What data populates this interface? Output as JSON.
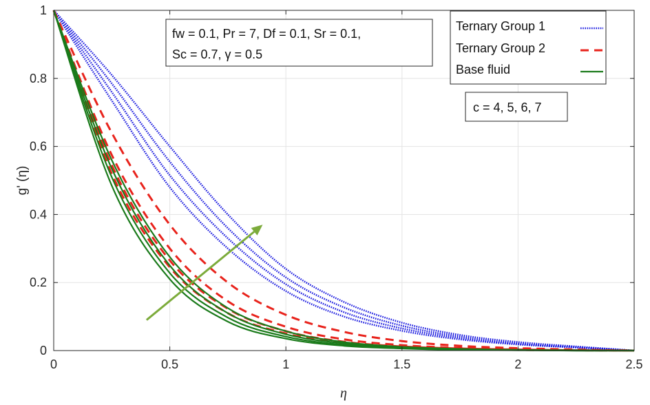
{
  "chart_data": {
    "type": "line",
    "title": "",
    "xlabel": "η",
    "ylabel": "g' (η)",
    "xlim": [
      0,
      2.5
    ],
    "ylim": [
      0,
      1
    ],
    "x_ticks": [
      "0",
      "0.5",
      "1",
      "1.5",
      "2",
      "2.5"
    ],
    "y_ticks": [
      "0",
      "0.2",
      "0.4",
      "0.6",
      "0.8",
      "1"
    ],
    "grid": true,
    "legend_position": "top-right",
    "parameter_box": {
      "line1": "fw = 0.1, Pr = 7, Df = 0.1, Sr = 0.1,",
      "line2": "Sc = 0.7, γ = 0.5"
    },
    "c_box": "c = 4, 5, 6, 7",
    "arrow": {
      "from": [
        0.4,
        0.09
      ],
      "to": [
        0.9,
        0.37
      ],
      "color": "#7cab3b"
    },
    "series": [
      {
        "name": "Ternary Group 1",
        "color": "#1f1fe0",
        "style": "dotted",
        "curves": [
          {
            "x": [
              0,
              0.25,
              0.5,
              0.75,
              1,
              1.25,
              1.5,
              1.75,
              2,
              2.25,
              2.5
            ],
            "y": [
              1,
              0.735,
              0.48,
              0.3,
              0.175,
              0.1,
              0.058,
              0.033,
              0.018,
              0.009,
              0
            ]
          },
          {
            "x": [
              0,
              0.25,
              0.5,
              0.75,
              1,
              1.25,
              1.5,
              1.75,
              2,
              2.25,
              2.5
            ],
            "y": [
              1,
              0.76,
              0.515,
              0.33,
              0.195,
              0.113,
              0.065,
              0.037,
              0.02,
              0.01,
              0
            ]
          },
          {
            "x": [
              0,
              0.25,
              0.5,
              0.75,
              1,
              1.25,
              1.5,
              1.75,
              2,
              2.25,
              2.5
            ],
            "y": [
              1,
              0.785,
              0.555,
              0.36,
              0.215,
              0.127,
              0.073,
              0.041,
              0.022,
              0.011,
              0
            ]
          },
          {
            "x": [
              0,
              0.25,
              0.5,
              0.75,
              1,
              1.25,
              1.5,
              1.75,
              2,
              2.25,
              2.5
            ],
            "y": [
              1,
              0.81,
              0.6,
              0.4,
              0.24,
              0.143,
              0.082,
              0.046,
              0.025,
              0.012,
              0
            ]
          }
        ]
      },
      {
        "name": "Ternary Group 2",
        "color": "#e8231c",
        "style": "dashed",
        "curves": [
          {
            "x": [
              0,
              0.25,
              0.5,
              0.75,
              1,
              1.25,
              1.5,
              1.75,
              2,
              2.25,
              2.5
            ],
            "y": [
              1,
              0.52,
              0.245,
              0.11,
              0.05,
              0.022,
              0.01,
              0.005,
              0.002,
              0.001,
              0
            ]
          },
          {
            "x": [
              0,
              0.25,
              0.5,
              0.75,
              1,
              1.25,
              1.5,
              1.75,
              2,
              2.25,
              2.5
            ],
            "y": [
              1,
              0.545,
              0.265,
              0.123,
              0.057,
              0.026,
              0.012,
              0.006,
              0.003,
              0.001,
              0
            ]
          },
          {
            "x": [
              0,
              0.25,
              0.5,
              0.75,
              1,
              1.25,
              1.5,
              1.75,
              2,
              2.25,
              2.5
            ],
            "y": [
              1,
              0.575,
              0.3,
              0.145,
              0.07,
              0.033,
              0.016,
              0.008,
              0.004,
              0.002,
              0
            ]
          },
          {
            "x": [
              0,
              0.25,
              0.5,
              0.75,
              1,
              1.25,
              1.5,
              1.75,
              2,
              2.25,
              2.5
            ],
            "y": [
              1,
              0.64,
              0.37,
              0.2,
              0.105,
              0.055,
              0.028,
              0.014,
              0.007,
              0.003,
              0
            ]
          }
        ]
      },
      {
        "name": "Base fluid",
        "color": "#1a7a1a",
        "style": "solid",
        "curves": [
          {
            "x": [
              0,
              0.25,
              0.5,
              0.75,
              1,
              1.25,
              1.5,
              1.75,
              2,
              2.25,
              2.5
            ],
            "y": [
              1,
              0.485,
              0.21,
              0.085,
              0.035,
              0.014,
              0.006,
              0.002,
              0.001,
              0,
              0
            ]
          },
          {
            "x": [
              0,
              0.25,
              0.5,
              0.75,
              1,
              1.25,
              1.5,
              1.75,
              2,
              2.25,
              2.5
            ],
            "y": [
              1,
              0.51,
              0.228,
              0.097,
              0.041,
              0.017,
              0.007,
              0.003,
              0.001,
              0,
              0
            ]
          },
          {
            "x": [
              0,
              0.25,
              0.5,
              0.75,
              1,
              1.25,
              1.5,
              1.75,
              2,
              2.25,
              2.5
            ],
            "y": [
              1,
              0.535,
              0.25,
              0.11,
              0.048,
              0.021,
              0.009,
              0.004,
              0.002,
              0,
              0
            ]
          },
          {
            "x": [
              0,
              0.25,
              0.5,
              0.75,
              1,
              1.25,
              1.5,
              1.75,
              2,
              2.25,
              2.5
            ],
            "y": [
              1,
              0.56,
              0.275,
              0.125,
              0.057,
              0.025,
              0.011,
              0.005,
              0.002,
              0.001,
              0
            ]
          }
        ]
      }
    ]
  }
}
